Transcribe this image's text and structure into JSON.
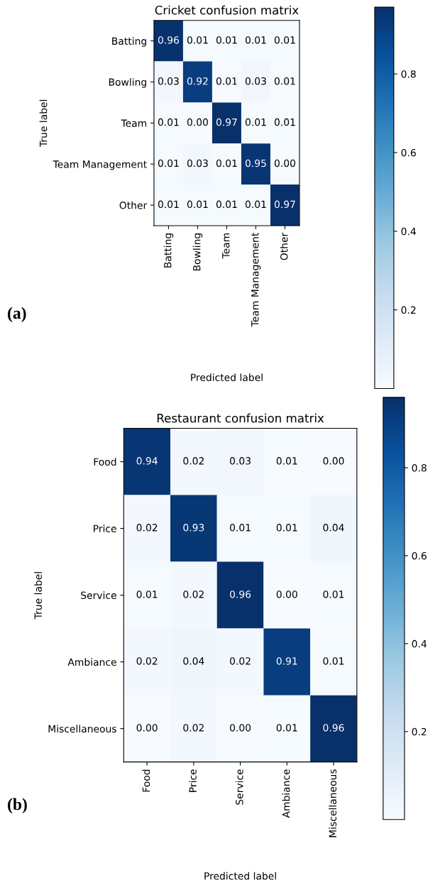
{
  "chart_data": [
    {
      "type": "heatmap",
      "title": "Cricket confusion matrix",
      "xlabel": "Predicted label",
      "ylabel": "True label",
      "categories": [
        "Batting",
        "Bowling",
        "Team",
        "Team Management",
        "Other"
      ],
      "y_categories": [
        "Batting",
        "Bowling",
        "Team",
        "Team Management",
        "Other"
      ],
      "cells": [
        [
          0.96,
          0.01,
          0.01,
          0.01,
          0.01
        ],
        [
          0.03,
          0.92,
          0.01,
          0.03,
          0.01
        ],
        [
          0.01,
          0.0,
          0.97,
          0.01,
          0.01
        ],
        [
          0.01,
          0.03,
          0.01,
          0.95,
          0.0
        ],
        [
          0.01,
          0.01,
          0.01,
          0.01,
          0.97
        ]
      ],
      "cell_labels": [
        [
          "0.96",
          "0.01",
          "0.01",
          "0.01",
          "0.01"
        ],
        [
          "0.03",
          "0.92",
          "0.01",
          "0.03",
          "0.01"
        ],
        [
          "0.01",
          "0.00",
          "0.97",
          "0.01",
          "0.01"
        ],
        [
          "0.01",
          "0.03",
          "0.01",
          "0.95",
          "0.00"
        ],
        [
          "0.01",
          "0.01",
          "0.01",
          "0.01",
          "0.97"
        ]
      ],
      "clim": [
        0.0,
        0.97
      ],
      "cticks": [
        0.2,
        0.4,
        0.6,
        0.8
      ],
      "data_labels": true,
      "annotations": [
        "(a)"
      ]
    },
    {
      "type": "heatmap",
      "title": "Restaurant confusion matrix",
      "xlabel": "Predicted label",
      "ylabel": "True label",
      "categories": [
        "Food",
        "Price",
        "Service",
        "Ambiance",
        "Miscellaneous"
      ],
      "y_categories": [
        "Food",
        "Price",
        "Service",
        "Ambiance",
        "Miscellaneous"
      ],
      "cells": [
        [
          0.94,
          0.02,
          0.03,
          0.01,
          0.0
        ],
        [
          0.02,
          0.93,
          0.01,
          0.01,
          0.04
        ],
        [
          0.01,
          0.02,
          0.96,
          0.0,
          0.01
        ],
        [
          0.02,
          0.04,
          0.02,
          0.91,
          0.01
        ],
        [
          0.0,
          0.02,
          0.0,
          0.01,
          0.96
        ]
      ],
      "cell_labels": [
        [
          "0.94",
          "0.02",
          "0.03",
          "0.01",
          "0.00"
        ],
        [
          "0.02",
          "0.93",
          "0.01",
          "0.01",
          "0.04"
        ],
        [
          "0.01",
          "0.02",
          "0.96",
          "0.00",
          "0.01"
        ],
        [
          "0.02",
          "0.04",
          "0.02",
          "0.91",
          "0.01"
        ],
        [
          "0.00",
          "0.02",
          "0.00",
          "0.01",
          "0.96"
        ]
      ],
      "clim": [
        0.0,
        0.96
      ],
      "cticks": [
        0.2,
        0.4,
        0.6,
        0.8
      ],
      "data_labels": true,
      "annotations": [
        "(b)"
      ]
    }
  ]
}
